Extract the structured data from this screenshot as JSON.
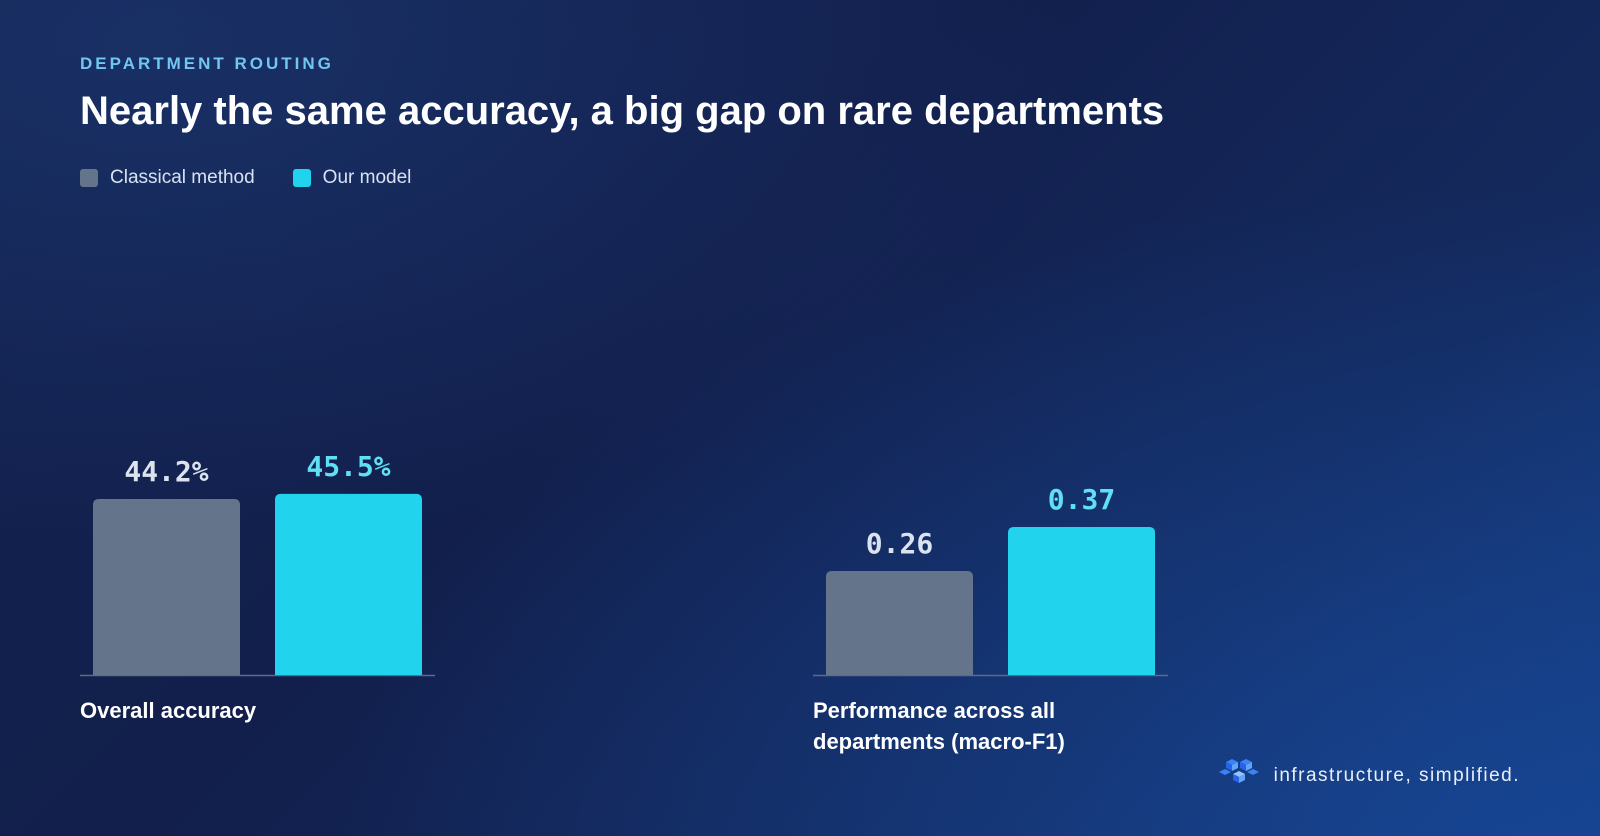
{
  "eyebrow": "DEPARTMENT ROUTING",
  "title": "Nearly the same accuracy, a big gap on rare departments",
  "legend": [
    {
      "label": "Classical method",
      "color": "#64748b"
    },
    {
      "label": "Our model",
      "color": "#22d3ee"
    }
  ],
  "chart_data": [
    {
      "type": "bar",
      "xlabel": "Overall accuracy",
      "series": [
        {
          "name": "Classical method",
          "value": 44.2,
          "label": "44.2%",
          "color": "#64748b",
          "label_color": "#dbe3ef"
        },
        {
          "name": "Our model",
          "value": 45.5,
          "label": "45.5%",
          "color": "#22d3ee",
          "label_color": "#5fe0f5"
        }
      ]
    },
    {
      "type": "bar",
      "xlabel": "Performance across all departments (macro-F1)",
      "series": [
        {
          "name": "Classical method",
          "value": 0.26,
          "label": "0.26",
          "color": "#64748b",
          "label_color": "#dbe3ef"
        },
        {
          "name": "Our model",
          "value": 0.37,
          "label": "0.37",
          "color": "#22d3ee",
          "label_color": "#5fe0f5"
        }
      ]
    }
  ],
  "brand": {
    "tagline": "infrastructure, simplified.",
    "icon": "stacked-cubes-logo-icon"
  }
}
